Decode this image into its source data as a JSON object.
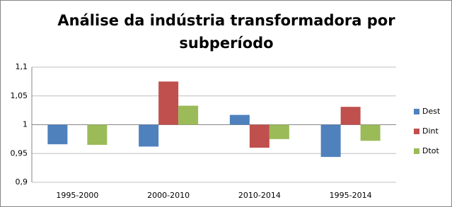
{
  "chart_data": {
    "type": "bar",
    "title": [
      "Análise da indústria transformadora por",
      "subperíodo"
    ],
    "categories": [
      "1995-2000",
      "2000-2010",
      "2010-2014",
      "1995-2014"
    ],
    "series": [
      {
        "name": "Dest",
        "color": "#4f81bd",
        "values": [
          0.966,
          0.962,
          1.017,
          0.944
        ]
      },
      {
        "name": "Dint",
        "color": "#c0504d",
        "values": [
          1,
          1.075,
          0.96,
          1.031
        ]
      },
      {
        "name": "Dtot",
        "color": "#9bbb59",
        "values": [
          0.965,
          1.033,
          0.975,
          0.972
        ]
      }
    ],
    "ylim": [
      0.9,
      1.1
    ],
    "yticks": [
      {
        "value": 0.9,
        "label": "0,9"
      },
      {
        "value": 0.95,
        "label": "0,95"
      },
      1,
      {
        "value": 1.05,
        "label": "1,05"
      },
      {
        "value": 1.1,
        "label": "1,1"
      }
    ],
    "x_axis_crosses": 1,
    "grid": true,
    "legend": "right"
  }
}
